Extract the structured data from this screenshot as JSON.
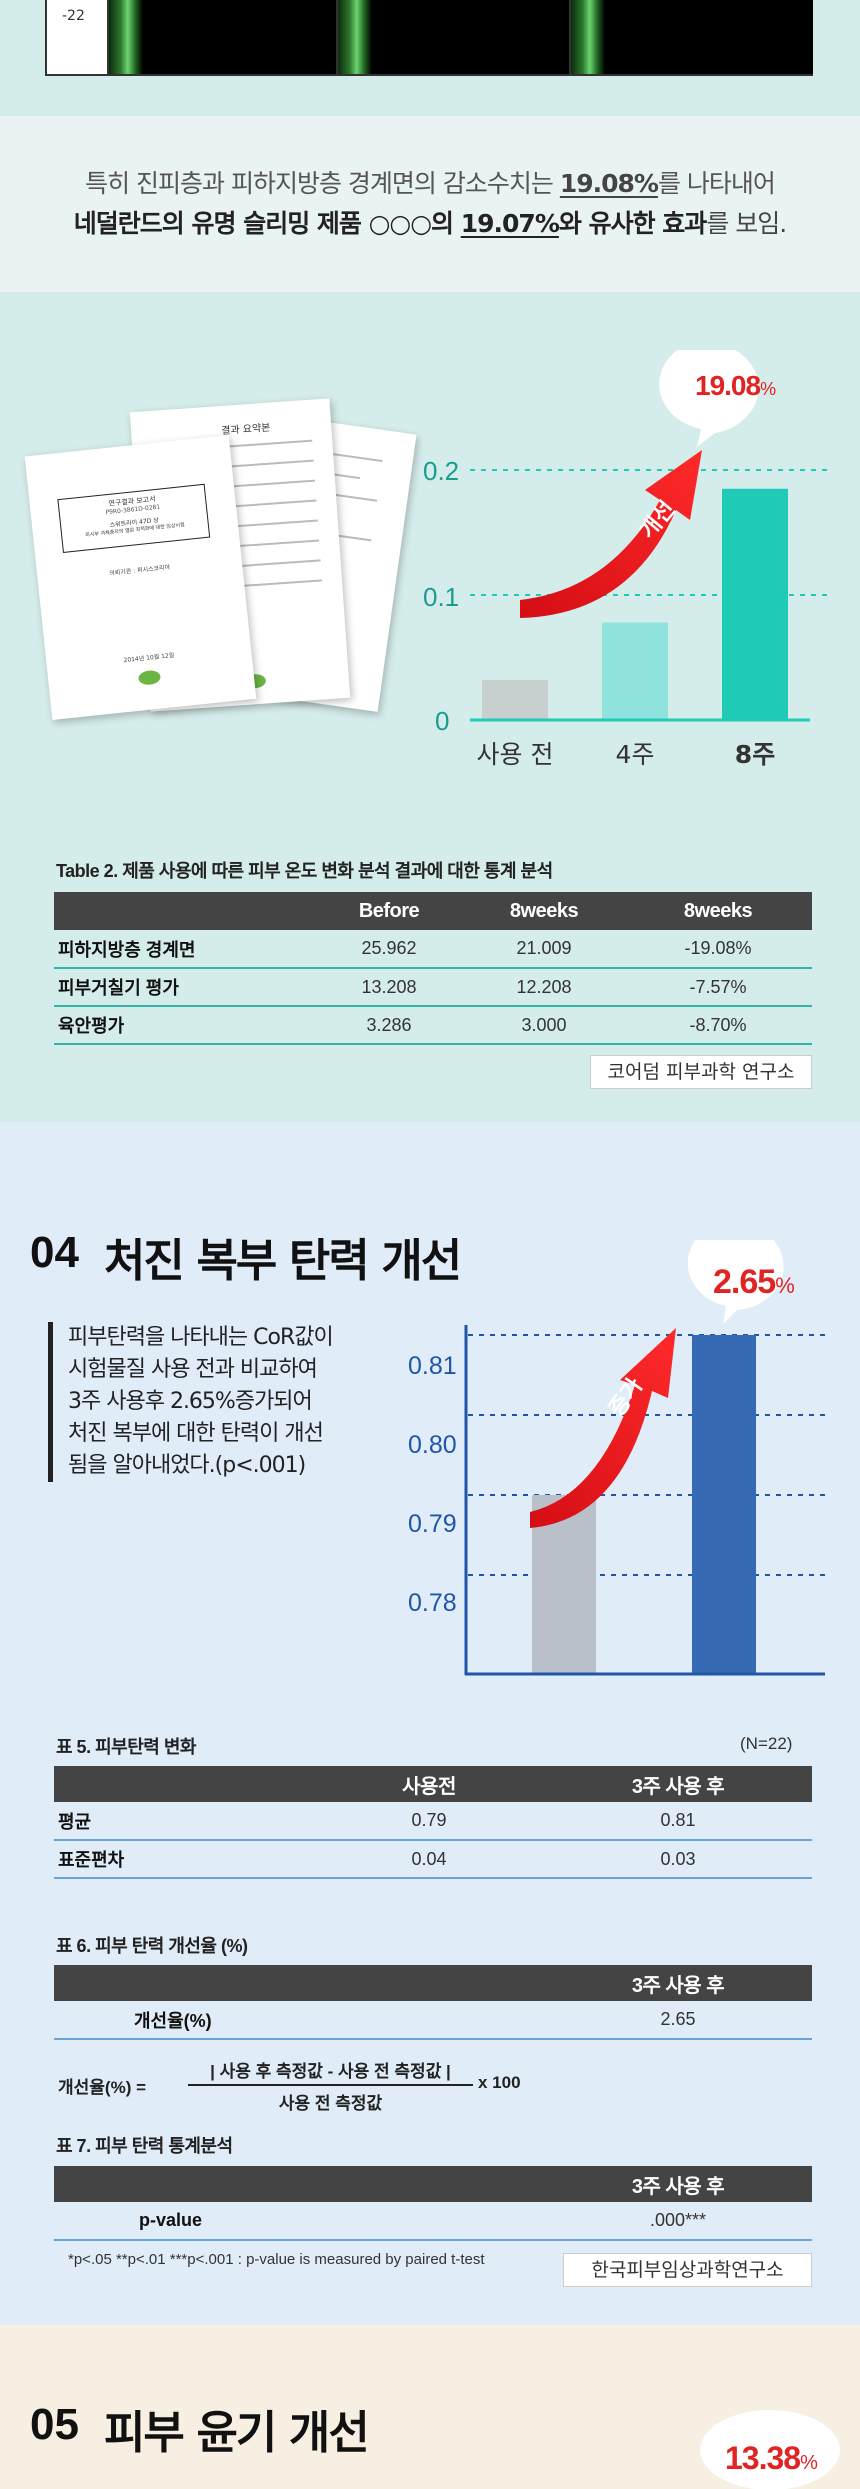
{
  "top_strip": {
    "label": "-22"
  },
  "summary": {
    "line1_a": "특히 진피층과 피하지방층 경계면의 감소수치는 ",
    "line1_value": "19.08%",
    "line1_b": "를 나타내어",
    "line2_a": "네덜란드의 유명 슬리밍 제품 ○○○의 ",
    "line2_value": "19.07%",
    "line2_b": "와 유사한 효과",
    "line2_c": "를 보임."
  },
  "temp_chart": {
    "bubble_value": "19.08",
    "bubble_unit": "%",
    "arrow_label": "개선",
    "chart_data": {
      "type": "bar",
      "categories": [
        "사용 전",
        "4주",
        "8주"
      ],
      "values": [
        0.032,
        0.078,
        0.185
      ],
      "yticks": [
        "0",
        "0.1",
        "0.2"
      ],
      "ylim": [
        0,
        0.2
      ],
      "colors": [
        "#c7cfcf",
        "#8fe3dc",
        "#1fcbb6"
      ],
      "accent": "#1fcbb6"
    }
  },
  "docs": {
    "doc1_lines": [
      "연구결과 보고서",
      "P9R0-3861D-0281",
      "스위트라이 47D 상",
      "피시부 과체중자의 열감 최적화에 대한 임상시험",
      "의뢰기관 : 퍼시스코리아",
      "2014년 10월 12일"
    ],
    "doc2_title": "결과 요약본"
  },
  "table2": {
    "caption": "Table 2. 제품 사용에 따른 피부 온도 변화 분석 결과에 대한 통계 분석",
    "headers": [
      "",
      "Before",
      "8weeks",
      "8weeks"
    ],
    "rows": [
      [
        "피하지방층 경계면",
        "25.962",
        "21.009",
        "-19.08%"
      ],
      [
        "피부거칠기 평가",
        "13.208",
        "12.208",
        "-7.57%"
      ],
      [
        "육안평가",
        "3.286",
        "3.000",
        "-8.70%"
      ]
    ],
    "source": "코어덤 피부과학 연구소"
  },
  "elastic": {
    "num": "04",
    "title": "처진 복부 탄력 개선",
    "desc": [
      "피부탄력을 나타내는 CoR값이",
      "시험물질 사용 전과 비교하여",
      "3주 사용후 2.65%증가되어",
      "처진 복부에 대한 탄력이 개선",
      "됨을 알아내었다.(p<.001)"
    ],
    "bubble_value": "2.65",
    "bubble_unit": "%",
    "arrow_label": "증가",
    "chart_data": {
      "type": "bar",
      "categories": [
        "사용전",
        "3주 사용 후"
      ],
      "values": [
        0.79,
        0.81
      ],
      "yticks": [
        "0.78",
        "0.79",
        "0.80",
        "0.81"
      ],
      "ylim": [
        0.77,
        0.815
      ],
      "colors": [
        "#b9c0c9",
        "#3669b4"
      ],
      "accent": "#2056a8"
    }
  },
  "table5": {
    "caption": "표 5. 피부탄력 변화",
    "n": "(N=22)",
    "headers": [
      "",
      "사용전",
      "3주 사용 후"
    ],
    "rows": [
      [
        "평균",
        "0.79",
        "0.81"
      ],
      [
        "표준편차",
        "0.04",
        "0.03"
      ]
    ]
  },
  "table6": {
    "caption": "표 6. 피부 탄력 개선율 (%)",
    "headers": [
      "",
      "3주 사용 후"
    ],
    "rows": [
      [
        "개선율(%)",
        "2.65"
      ]
    ],
    "formula_lhs": "개선율(%) =",
    "formula_num": "| 사용 후 측정값 - 사용 전 측정값 |",
    "formula_den": "사용 전 측정값",
    "formula_rhs": "x 100"
  },
  "table7": {
    "caption": "표 7. 피부 탄력 통계분석",
    "headers": [
      "",
      "3주 사용 후"
    ],
    "rows": [
      [
        "p-value",
        ".000***"
      ]
    ],
    "footnote": "*p<.05 **p<.01 ***p<.001 : p-value is measured by paired t-test",
    "source": "한국피부임상과학연구소"
  },
  "gloss": {
    "num": "05",
    "title": "피부 윤기 개선",
    "bubble_value": "13.38",
    "bubble_unit": "%"
  }
}
